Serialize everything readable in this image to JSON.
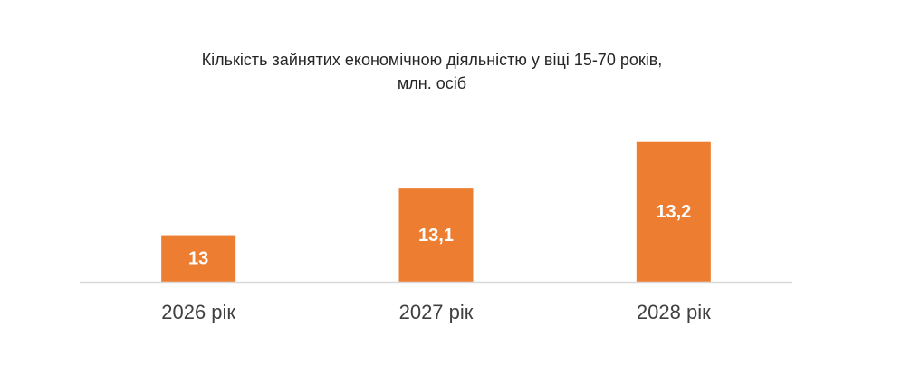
{
  "chart_data": {
    "type": "bar",
    "title": [
      "Кількість зайнятих економічною діяльністю у віці 15-70 років,",
      "млн. осіб"
    ],
    "categories": [
      "2026 рік",
      "2027 рік",
      "2028 рік"
    ],
    "values": [
      13,
      13.1,
      13.2
    ],
    "value_labels": [
      "13",
      "13,1",
      "13,2"
    ],
    "color": "#ed7d31",
    "ylim": [
      12.9,
      13.25
    ]
  }
}
